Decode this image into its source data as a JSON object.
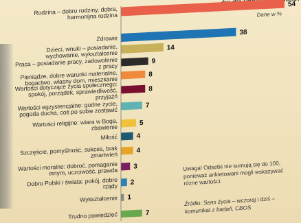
{
  "chart_data": {
    "type": "bar",
    "orientation": "horizontal",
    "title": "...ów dla Pana(i) jego sens?",
    "unit_label": "Dane w %",
    "xlim": [
      0,
      54
    ],
    "grid": false,
    "categories": [
      "Rodzina – dobro rodziny, dobra, harmonijna rodzina",
      "Zdrowie",
      "Dzieci, wnuki – posiadanie, wychowanie, wykształcenie",
      "Praca – posiadanie pracy, zadowolenie z pracy",
      "Pieniądze, dobre warunki materialne, bogactwo, własny dom, mieszkanie",
      "Wartości dotyczące życia społecznego: spokój, porządek, sprawiedliwość, przyjaźń",
      "Wartości egzystencjalne: godne życie, pogoda ducha, coś po sobie zostawić",
      "Wartości religijne: wiara w Boga, zbawienie",
      "Miłość",
      "Szczęście, pomyślność, sukces, brak zmartwień",
      "Wartości moralne: dobroć, pomaganie innym, uczciwość, prawda",
      "Dobro Polski i świata: pokój, dobre rządy",
      "Wykształcenie",
      "Trudno powiedzieć"
    ],
    "values": [
      54,
      38,
      14,
      9,
      8,
      8,
      7,
      5,
      4,
      4,
      3,
      2,
      1,
      7
    ],
    "colors": [
      "#e9614a",
      "#1f74b3",
      "#c7b15a",
      "#2b2b2b",
      "#f08a3a",
      "#7a1030",
      "#5fb3b3",
      "#f0c23a",
      "#1b5a70",
      "#e8a32b",
      "#7a1e60",
      "#2a82b8",
      "#8a8a8a",
      "#6aa84f"
    ]
  },
  "note": "Uwaga! Odsetki nie sumują się do 100, ponieważ ankietowani mogli wskazywać różne wartości.",
  "source": "Źródło: Sens życia – wczoraj i dziś – komunikat z badań, CBOS"
}
